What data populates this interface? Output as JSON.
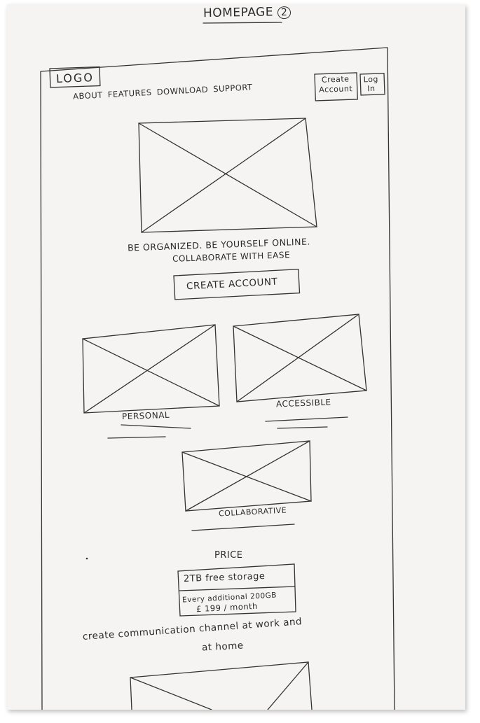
{
  "sheet": {
    "title": "HOMEPAGE",
    "page_number": "2"
  },
  "header": {
    "logo": "LOGO",
    "nav": [
      "ABOUT",
      "FEATURES",
      "DOWNLOAD",
      "SUPPORT"
    ],
    "create_account": [
      "Create",
      "Account"
    ],
    "log_in": [
      "Log",
      "In"
    ]
  },
  "hero": {
    "tagline_line1": "BE ORGANIZED. BE YOURSELF ONLINE.",
    "tagline_line2": "COLLABORATE WITH EASE",
    "cta": "CREATE ACCOUNT"
  },
  "features": [
    {
      "label": "PERSONAL"
    },
    {
      "label": "ACCESSIBLE"
    },
    {
      "label": "COLLABORATIVE"
    }
  ],
  "pricing": {
    "heading": "PRICE",
    "row1": "2TB free storage",
    "row2_line1": "Every additional 200GB",
    "row2_line2": "£ 199 / month"
  },
  "communication": {
    "line1": "create communication channel at work and",
    "line2": "at home"
  }
}
